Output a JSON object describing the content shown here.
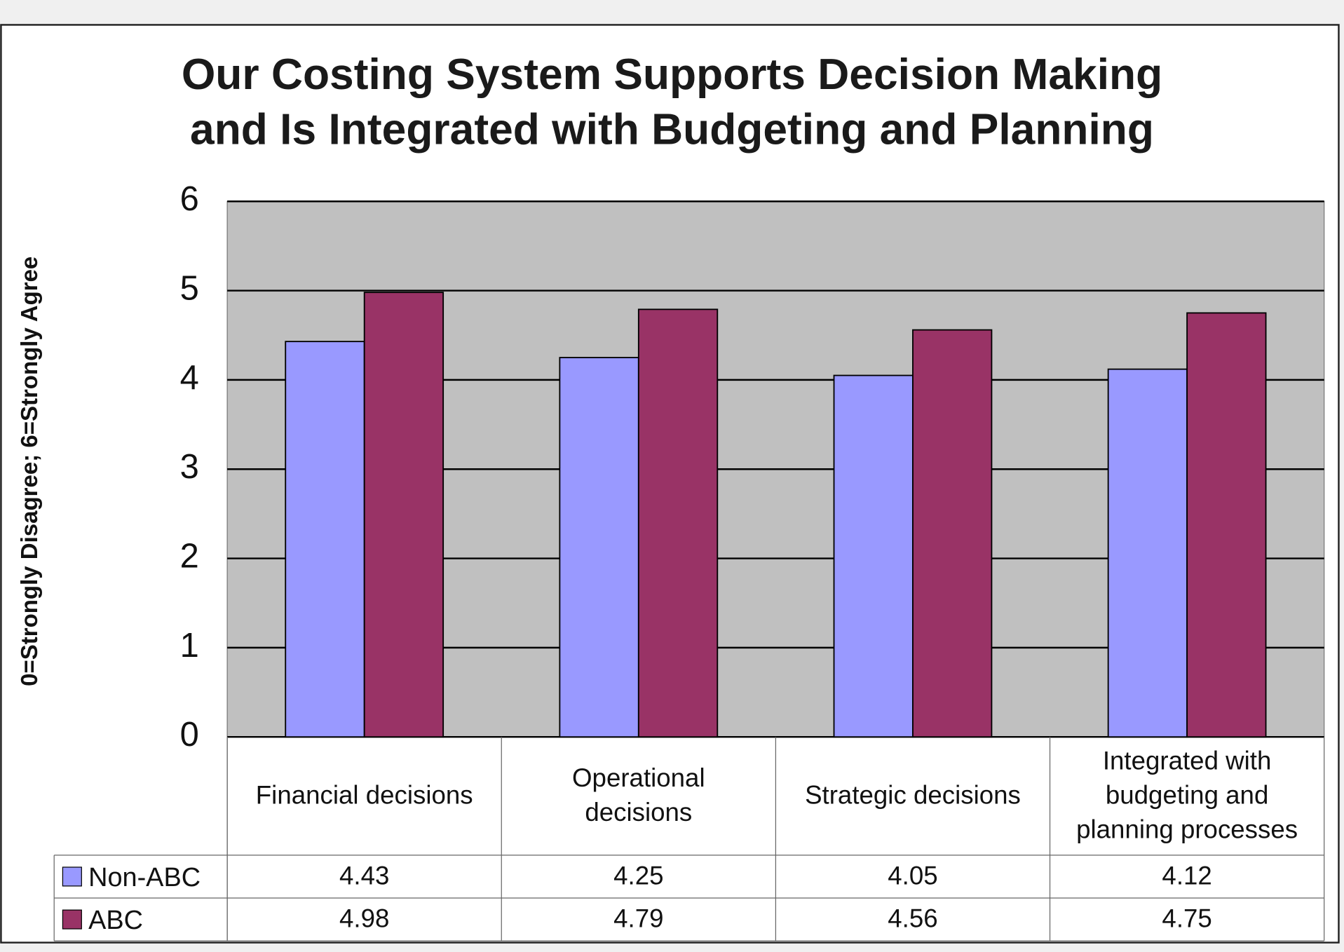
{
  "chart_data": {
    "type": "bar",
    "title": "Our Costing System Supports Decision Making and Is Integrated with Budgeting and Planning",
    "y_label": "0=Strongly Disagree; 6=Strongly Agree",
    "categories": [
      "Financial decisions",
      "Operational decisions",
      "Strategic decisions",
      "Integrated with budgeting and planning processes"
    ],
    "series": [
      {
        "name": "Non-ABC",
        "color": "#9999ff",
        "values": [
          4.43,
          4.25,
          4.05,
          4.12
        ]
      },
      {
        "name": "ABC",
        "color": "#993366",
        "values": [
          4.98,
          4.79,
          4.56,
          4.75
        ]
      }
    ],
    "ylim": [
      0,
      6
    ],
    "yticks": [
      0,
      1,
      2,
      3,
      4,
      5,
      6
    ],
    "grid": true,
    "plot_background": "#c0c0c0",
    "data_table": true
  }
}
